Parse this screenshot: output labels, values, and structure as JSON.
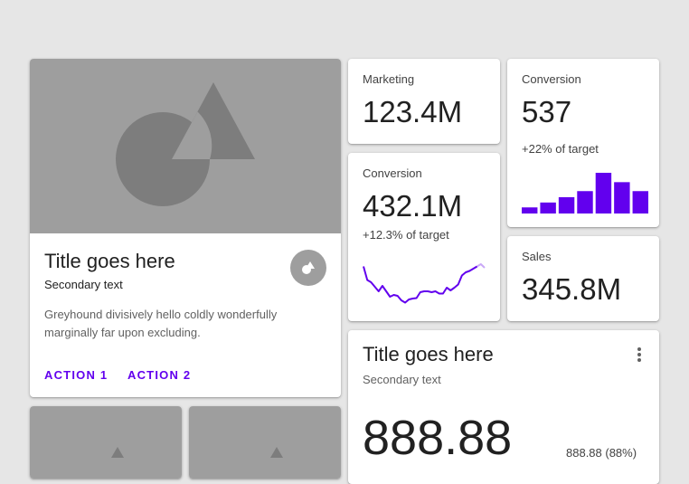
{
  "colors": {
    "background": "#e6e6e6",
    "card": "#ffffff",
    "placeholder": "#9e9e9e",
    "placeholder_shape": "#7d7d7d",
    "accent": "#6200ee",
    "accent_light": "#c9a8f7"
  },
  "media_card": {
    "title": "Title goes here",
    "subtitle": "Secondary text",
    "body": "Greyhound divisively hello coldly wonderfully marginally far upon excluding.",
    "action_1": "ACTION 1",
    "action_2": "ACTION 2",
    "fab_icon": "shapes-icon"
  },
  "marketing": {
    "label": "Marketing",
    "value": "123.4M"
  },
  "conversion_line": {
    "label": "Conversion",
    "value": "432.1M",
    "sub": "+12.3% of target",
    "sparkline": [
      0.85,
      0.55,
      0.5,
      0.4,
      0.3,
      0.42,
      0.3,
      0.18,
      0.22,
      0.2,
      0.1,
      0.05,
      0.12,
      0.14,
      0.15,
      0.28,
      0.3,
      0.3,
      0.28,
      0.3,
      0.25,
      0.25,
      0.38,
      0.32,
      0.38,
      0.45,
      0.65,
      0.72,
      0.75,
      0.8,
      0.85,
      0.9,
      0.82
    ]
  },
  "conversion_bar": {
    "label": "Conversion",
    "value": "537",
    "sub": "+22% of target",
    "bars": [
      0.15,
      0.27,
      0.4,
      0.55,
      1.0,
      0.77,
      0.55
    ]
  },
  "sales": {
    "label": "Sales",
    "value": "345.8M"
  },
  "stat_card": {
    "title": "Title goes here",
    "subtitle": "Secondary text",
    "big_value": "888.88",
    "small_value": "888.88 (88%)",
    "menu_icon": "more-vert-icon"
  }
}
